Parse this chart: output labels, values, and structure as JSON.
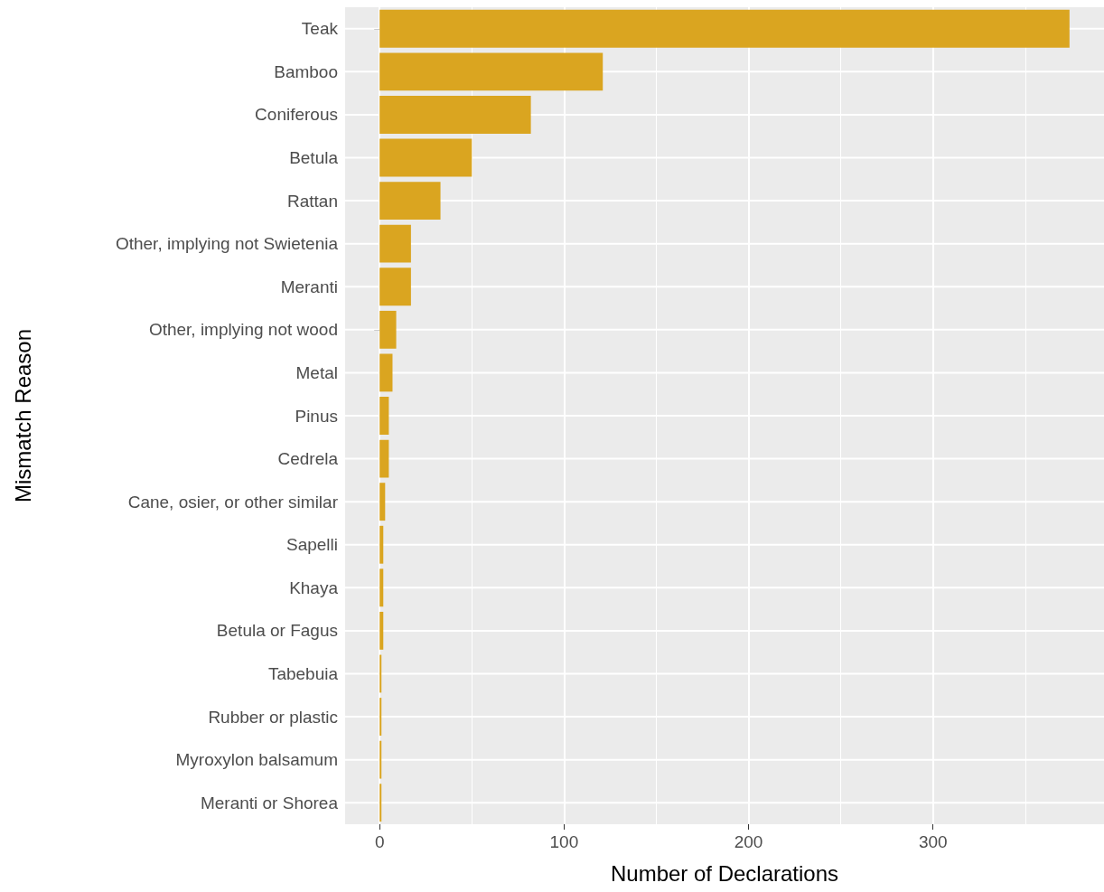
{
  "chart_data": {
    "type": "bar",
    "orientation": "horizontal",
    "xlabel": "Number of Declarations",
    "ylabel": "Mismatch Reason",
    "categories": [
      "Teak",
      "Bamboo",
      "Coniferous",
      "Betula",
      "Rattan",
      "Other, implying not Swietenia",
      "Meranti",
      "Other, implying not wood",
      "Metal",
      "Pinus",
      "Cedrela",
      "Cane, osier, or other similar",
      "Sapelli",
      "Khaya",
      "Betula or Fagus",
      "Tabebuia",
      "Rubber or plastic",
      "Myroxylon balsamum",
      "Meranti or Shorea"
    ],
    "values": [
      374,
      121,
      82,
      50,
      33,
      17,
      17,
      9,
      7,
      5,
      5,
      3,
      2,
      2,
      2,
      1,
      1,
      1,
      1
    ],
    "color": "#daa520",
    "xlim": [
      -18.7,
      392.7
    ],
    "xticks": [
      0,
      {
        "value": 50,
        "label": null
      },
      100,
      {
        "value": 150,
        "label": null
      },
      200,
      {
        "value": 250,
        "label": null
      },
      300,
      {
        "value": 350,
        "label": null
      }
    ],
    "grid": true
  }
}
